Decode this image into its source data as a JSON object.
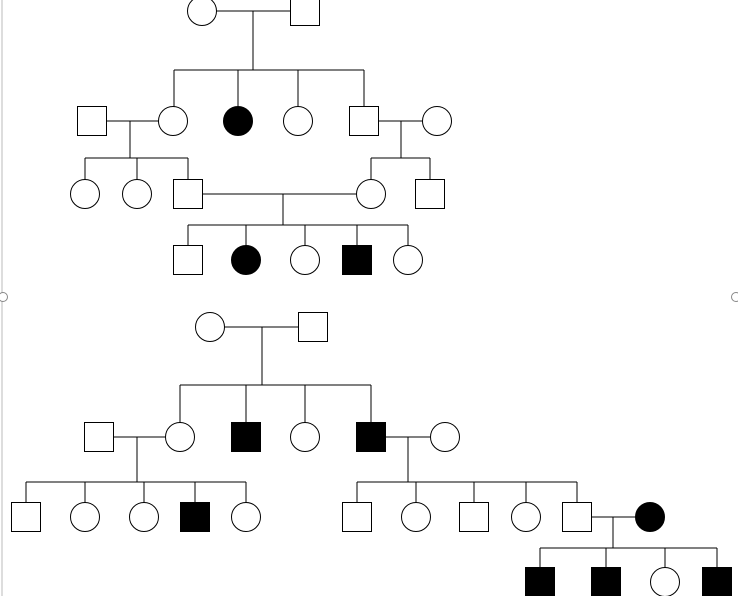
{
  "colors": {
    "stroke": "#000000",
    "affected": "#000000",
    "unaffected": "#ffffff",
    "handle": "#888888"
  },
  "pedigrees": [
    {
      "individuals": [
        {
          "sex": "female",
          "affected": false
        },
        {
          "sex": "male",
          "affected": false
        },
        {
          "sex": "male",
          "affected": false
        },
        {
          "sex": "female",
          "affected": false
        },
        {
          "sex": "female",
          "affected": true
        },
        {
          "sex": "female",
          "affected": false
        },
        {
          "sex": "male",
          "affected": false
        },
        {
          "sex": "female",
          "affected": false
        },
        {
          "sex": "female",
          "affected": false
        },
        {
          "sex": "female",
          "affected": false
        },
        {
          "sex": "male",
          "affected": false
        },
        {
          "sex": "female",
          "affected": false
        },
        {
          "sex": "male",
          "affected": false
        },
        {
          "sex": "male",
          "affected": false
        },
        {
          "sex": "female",
          "affected": true
        },
        {
          "sex": "female",
          "affected": false
        },
        {
          "sex": "male",
          "affected": true
        },
        {
          "sex": "female",
          "affected": false
        }
      ]
    },
    {
      "individuals": [
        {
          "sex": "female",
          "affected": false
        },
        {
          "sex": "male",
          "affected": false
        },
        {
          "sex": "male",
          "affected": false
        },
        {
          "sex": "female",
          "affected": false
        },
        {
          "sex": "male",
          "affected": true
        },
        {
          "sex": "female",
          "affected": false
        },
        {
          "sex": "male",
          "affected": true
        },
        {
          "sex": "female",
          "affected": false
        },
        {
          "sex": "male",
          "affected": false
        },
        {
          "sex": "female",
          "affected": false
        },
        {
          "sex": "female",
          "affected": false
        },
        {
          "sex": "male",
          "affected": true
        },
        {
          "sex": "female",
          "affected": false
        },
        {
          "sex": "male",
          "affected": false
        },
        {
          "sex": "female",
          "affected": false
        },
        {
          "sex": "male",
          "affected": false
        },
        {
          "sex": "female",
          "affected": false
        },
        {
          "sex": "male",
          "affected": false
        },
        {
          "sex": "female",
          "affected": true
        },
        {
          "sex": "male",
          "affected": true
        },
        {
          "sex": "male",
          "affected": true
        },
        {
          "sex": "female",
          "affected": false
        },
        {
          "sex": "male",
          "affected": true
        }
      ]
    }
  ]
}
